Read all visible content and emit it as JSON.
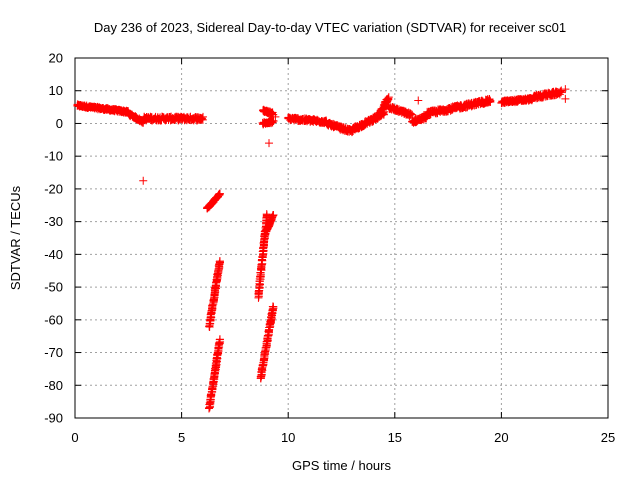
{
  "chart_data": {
    "type": "scatter",
    "title": "Day 236 of 2023, Sidereal Day-to-day VTEC variation (SDTVAR) for receiver sc01",
    "xlabel": "GPS time / hours",
    "ylabel": "SDTVAR / TECUs",
    "xlim": [
      0,
      25
    ],
    "ylim": [
      -90,
      20
    ],
    "xticks": [
      0,
      5,
      10,
      15,
      20,
      25
    ],
    "yticks": [
      20,
      10,
      0,
      -10,
      -20,
      -30,
      -40,
      -50,
      -60,
      -70,
      -80,
      -90
    ],
    "grid": true,
    "marker": "+",
    "color": "#ff0000",
    "series": [
      {
        "name": "SDTVAR",
        "segments": [
          {
            "x_start": 0.1,
            "x_end": 2.5,
            "y_start": 5.5,
            "y_end": 3.5,
            "jitter": 0.7
          },
          {
            "x_start": 2.5,
            "x_end": 3.2,
            "y_start": 3.0,
            "y_end": 0.5,
            "jitter": 0.8
          },
          {
            "x_start": 3.2,
            "x_end": 6.0,
            "y_start": 1.5,
            "y_end": 1.5,
            "jitter": 1.2
          },
          {
            "x_start": 6.2,
            "x_end": 6.8,
            "y_start": -26.0,
            "y_end": -21.5,
            "jitter": 0.4
          },
          {
            "x_start": 6.3,
            "x_end": 6.8,
            "y_start": -62.0,
            "y_end": -42.0,
            "jitter": 0.6
          },
          {
            "x_start": 6.3,
            "x_end": 6.8,
            "y_start": -87.0,
            "y_end": -66.0,
            "jitter": 0.6
          },
          {
            "x_start": 8.6,
            "x_end": 9.0,
            "y_start": -53.0,
            "y_end": -28.0,
            "jitter": 0.7
          },
          {
            "x_start": 8.7,
            "x_end": 9.3,
            "y_start": -78.0,
            "y_end": -56.0,
            "jitter": 0.6
          },
          {
            "x_start": 8.9,
            "x_end": 9.3,
            "y_start": -34.0,
            "y_end": -28.0,
            "jitter": 0.5
          },
          {
            "x_start": 8.8,
            "x_end": 9.3,
            "y_start": 4.0,
            "y_end": 3.0,
            "jitter": 0.7
          },
          {
            "x_start": 8.8,
            "x_end": 9.3,
            "y_start": 0.0,
            "y_end": 0.5,
            "jitter": 0.8
          },
          {
            "x_start": 10.0,
            "x_end": 11.8,
            "y_start": 1.5,
            "y_end": 0.5,
            "jitter": 1.0
          },
          {
            "x_start": 11.8,
            "x_end": 13.0,
            "y_start": 0.0,
            "y_end": -2.5,
            "jitter": 1.0
          },
          {
            "x_start": 13.0,
            "x_end": 14.5,
            "y_start": -2.0,
            "y_end": 3.0,
            "jitter": 1.2
          },
          {
            "x_start": 14.3,
            "x_end": 14.7,
            "y_start": 3.0,
            "y_end": 8.0,
            "jitter": 1.0
          },
          {
            "x_start": 14.7,
            "x_end": 15.8,
            "y_start": 5.0,
            "y_end": 2.5,
            "jitter": 1.0
          },
          {
            "x_start": 15.8,
            "x_end": 16.5,
            "y_start": 0.5,
            "y_end": 2.0,
            "jitter": 1.0
          },
          {
            "x_start": 16.5,
            "x_end": 19.5,
            "y_start": 3.0,
            "y_end": 7.0,
            "jitter": 1.2
          },
          {
            "x_start": 20.0,
            "x_end": 21.5,
            "y_start": 6.5,
            "y_end": 7.5,
            "jitter": 0.8
          },
          {
            "x_start": 21.5,
            "x_end": 22.8,
            "y_start": 8.0,
            "y_end": 9.5,
            "jitter": 1.2
          }
        ],
        "points": [
          {
            "x": 3.2,
            "y": -17.5
          },
          {
            "x": 9.1,
            "y": -6.0
          },
          {
            "x": 9.4,
            "y": 2.0
          },
          {
            "x": 16.1,
            "y": 7.0
          },
          {
            "x": 23.0,
            "y": 10.5
          },
          {
            "x": 23.0,
            "y": 7.5
          },
          {
            "x": 6.8,
            "y": -21.5
          },
          {
            "x": 9.0,
            "y": -28.0
          }
        ]
      }
    ]
  }
}
